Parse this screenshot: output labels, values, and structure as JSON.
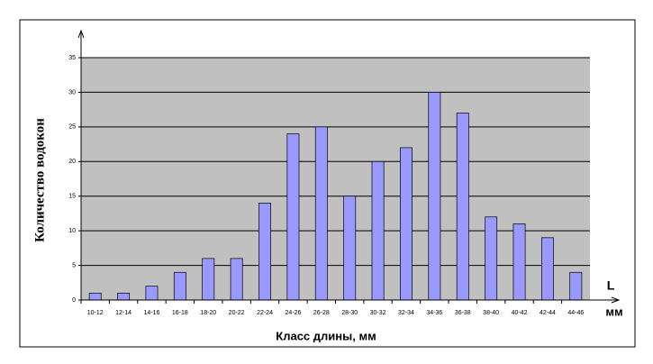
{
  "chart_data": {
    "type": "bar",
    "x_label": "Класс длины, мм",
    "y_label": "Количество водокон",
    "annotations": [
      "L",
      "мм"
    ],
    "categories": [
      "10-12",
      "12-14",
      "14-16",
      "16-18",
      "18-20",
      "20-22",
      "22-24",
      "24-26",
      "26-28",
      "28-30",
      "30-32",
      "32-34",
      "34-36",
      "36-38",
      "38-40",
      "40-42",
      "42-44",
      "44-46"
    ],
    "values": [
      1,
      1,
      2,
      4,
      6,
      6,
      14,
      24,
      25,
      15,
      20,
      22,
      30,
      27,
      12,
      11,
      9,
      4
    ],
    "color": "#9999ff",
    "plot_background": "#c0c0c0",
    "ylim": [
      0,
      35
    ],
    "yticks": [
      0,
      5,
      10,
      15,
      20,
      25,
      30,
      35
    ],
    "grid": true
  }
}
